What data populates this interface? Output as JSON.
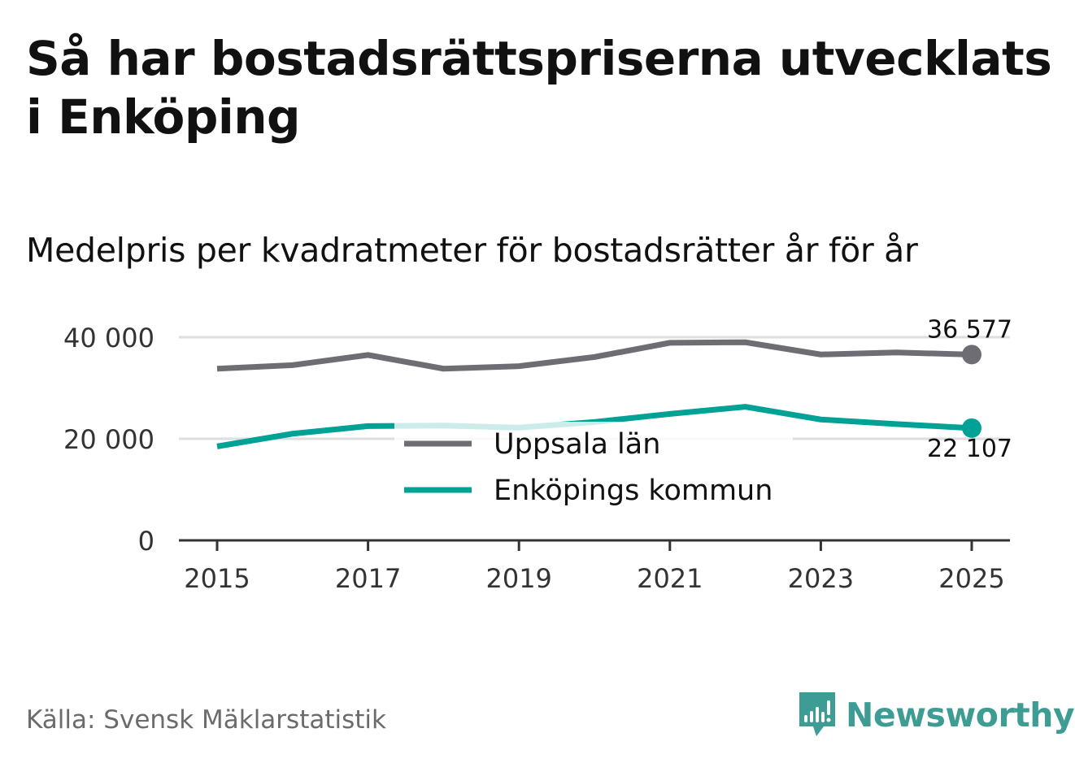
{
  "title": "Så har bostadsrättspriserna utvecklats i Enköping",
  "subtitle": "Medelpris per kvadratmeter för bostadsrätter år för år",
  "source": "Källa: Svensk Mäklarstatistik",
  "brand": "Newsworthy",
  "colors": {
    "uppsala": "#6e6d74",
    "enkoping": "#00a296",
    "grid": "#dedede",
    "axis": "#333333",
    "brand": "#3d9c93"
  },
  "chart_data": {
    "type": "line",
    "title": "Så har bostadsrättspriserna utvecklats i Enköping",
    "subtitle": "Medelpris per kvadratmeter för bostadsrätter år för år",
    "x": [
      2015,
      2016,
      2017,
      2018,
      2019,
      2020,
      2021,
      2022,
      2023,
      2024,
      2025
    ],
    "xticks": [
      "2015",
      "2017",
      "2019",
      "2021",
      "2023",
      "2025"
    ],
    "yticks": [
      0,
      20000,
      40000
    ],
    "ytick_labels": [
      "0",
      "20 000",
      "40 000"
    ],
    "ylim": [
      0,
      40000
    ],
    "xlabel": "",
    "ylabel": "",
    "grid": true,
    "legend_position": "center",
    "series": [
      {
        "name": "Uppsala län",
        "color": "#6e6d74",
        "values": [
          33800,
          34500,
          36500,
          33800,
          34300,
          36100,
          38900,
          39000,
          36600,
          37000,
          36577
        ],
        "end_label": "36 577"
      },
      {
        "name": "Enköpings kommun",
        "color": "#00a296",
        "values": [
          18500,
          21000,
          22500,
          22600,
          22200,
          23300,
          24900,
          26300,
          23800,
          22900,
          22107
        ],
        "end_label": "22 107"
      }
    ]
  }
}
